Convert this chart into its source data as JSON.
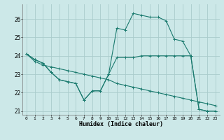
{
  "xlabel": "Humidex (Indice chaleur)",
  "background_color": "#cce8e8",
  "grid_color": "#aacccc",
  "line_color": "#1a7a6e",
  "ylim": [
    20.8,
    26.8
  ],
  "xlim": [
    -0.5,
    23.5
  ],
  "yticks": [
    21,
    22,
    23,
    24,
    25,
    26
  ],
  "xticks": [
    0,
    1,
    2,
    3,
    4,
    5,
    6,
    7,
    8,
    9,
    10,
    11,
    12,
    13,
    14,
    15,
    16,
    17,
    18,
    19,
    20,
    21,
    22,
    23
  ],
  "lines": [
    {
      "x": [
        0,
        1,
        2,
        3,
        4,
        5,
        6,
        7,
        8,
        9,
        10,
        11,
        12,
        13,
        14,
        15,
        16,
        17,
        18,
        19,
        20,
        21,
        22,
        23
      ],
      "y": [
        24.1,
        23.8,
        23.6,
        23.1,
        22.7,
        22.6,
        22.5,
        21.6,
        22.1,
        22.1,
        23.0,
        25.5,
        25.4,
        26.3,
        26.2,
        26.1,
        26.1,
        25.9,
        24.9,
        24.8,
        24.0,
        21.1,
        21.0,
        21.0
      ]
    },
    {
      "x": [
        0,
        1,
        2,
        3,
        4,
        5,
        6,
        7,
        8,
        9,
        10,
        11,
        12,
        13,
        14,
        15,
        16,
        17,
        18,
        19,
        20,
        21,
        22,
        23
      ],
      "y": [
        24.1,
        23.8,
        23.6,
        23.1,
        22.7,
        22.6,
        22.5,
        21.6,
        22.1,
        22.1,
        23.0,
        23.9,
        23.9,
        23.9,
        24.0,
        24.0,
        24.0,
        24.0,
        24.0,
        24.0,
        24.0,
        21.1,
        21.0,
        21.0
      ]
    },
    {
      "x": [
        0,
        1,
        2,
        3,
        4,
        5,
        6,
        7,
        8,
        9,
        10,
        11,
        12,
        13,
        14,
        15,
        16,
        17,
        18,
        19,
        20,
        21,
        22,
        23
      ],
      "y": [
        24.1,
        23.7,
        23.5,
        23.4,
        23.3,
        23.2,
        23.1,
        23.0,
        22.9,
        22.8,
        22.7,
        22.5,
        22.4,
        22.3,
        22.2,
        22.1,
        22.0,
        21.9,
        21.8,
        21.7,
        21.6,
        21.5,
        21.4,
        21.3
      ]
    }
  ]
}
